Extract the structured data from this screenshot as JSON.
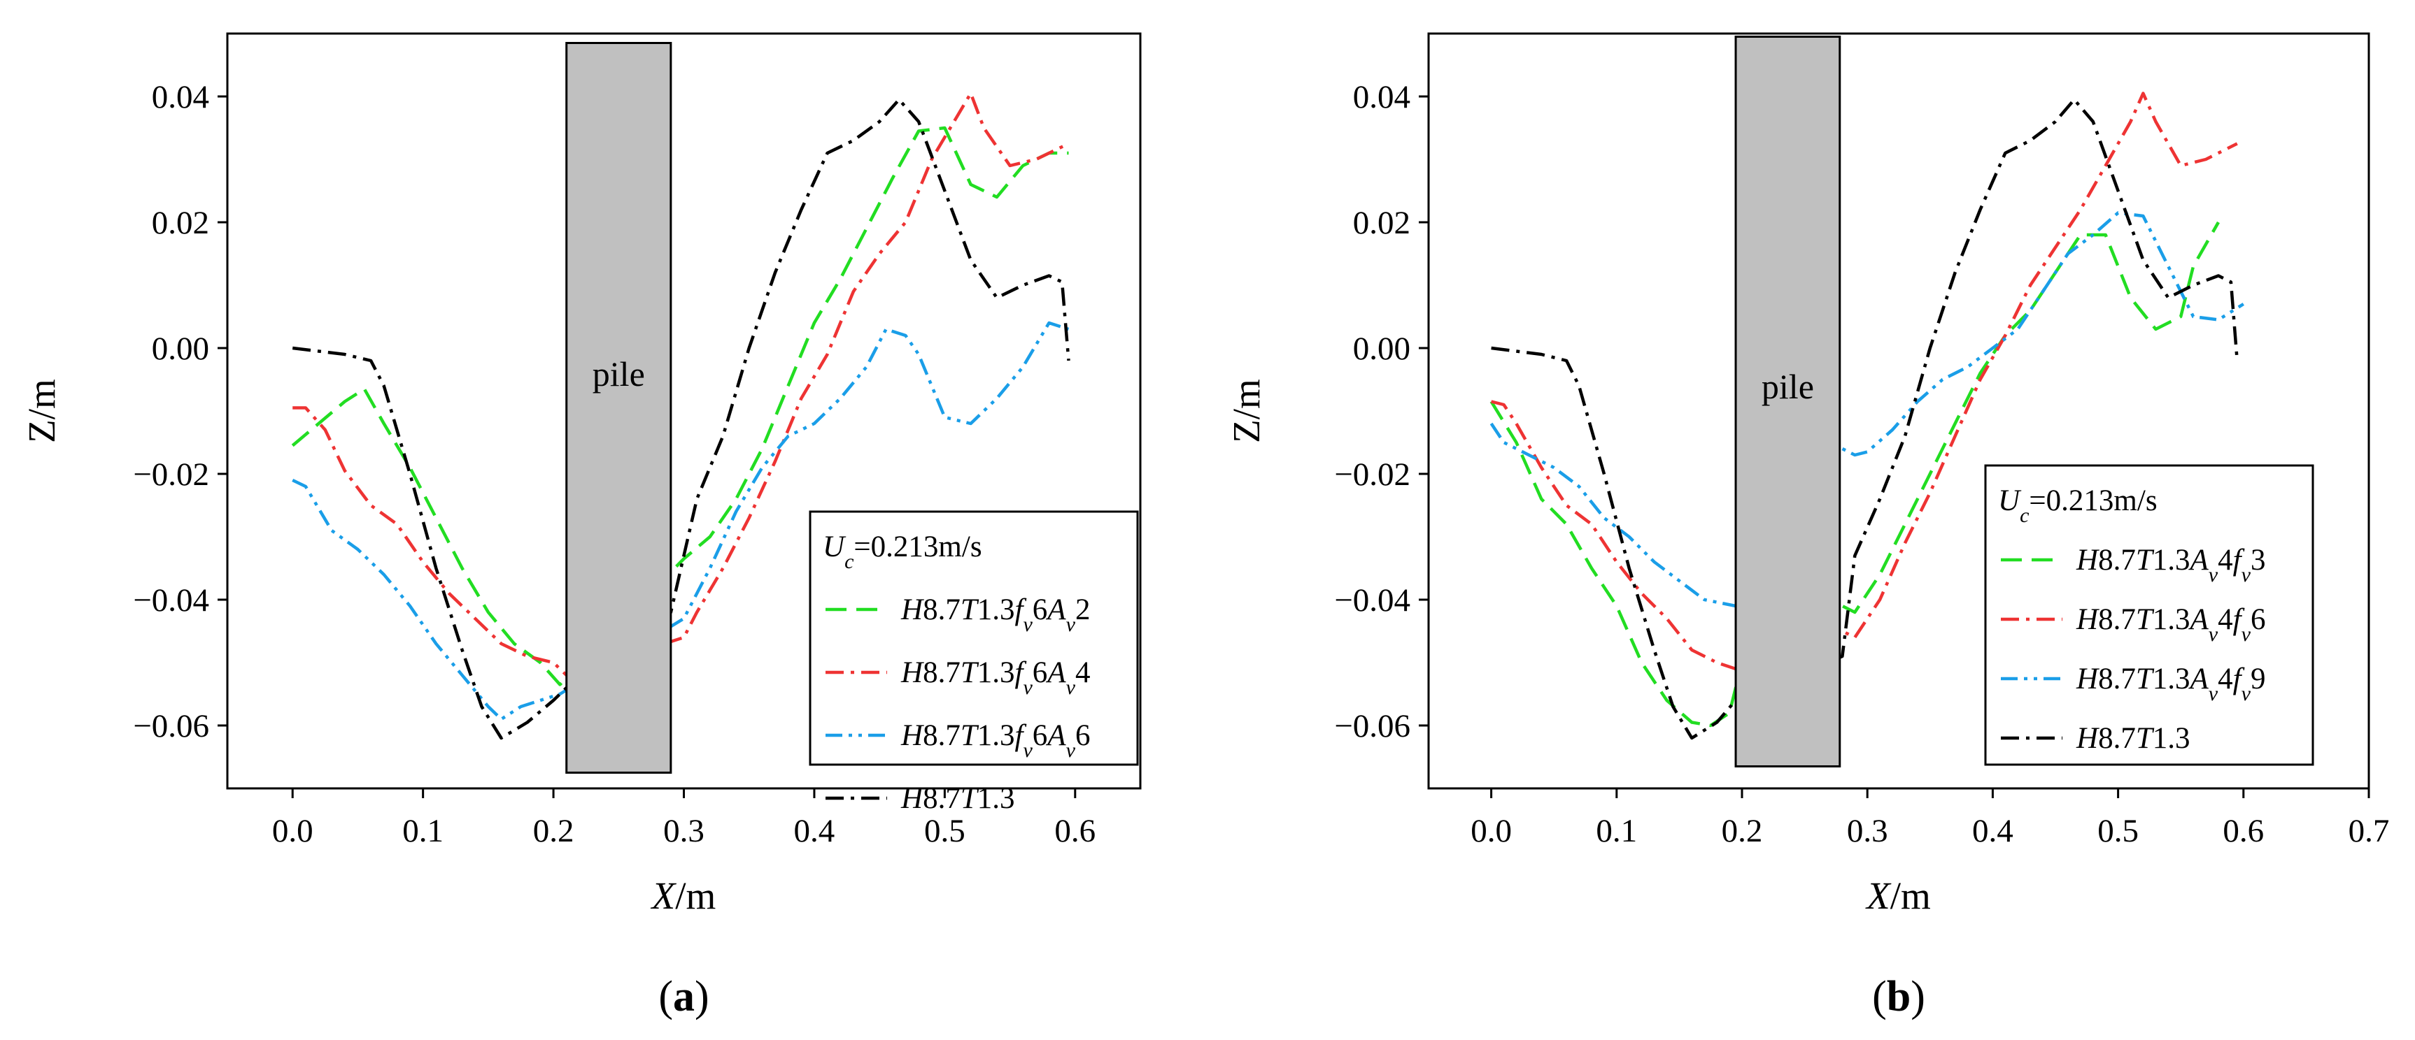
{
  "chart_data": [
    {
      "type": "line",
      "panel_label": [
        "(",
        "a",
        ")"
      ],
      "xlabel": [
        "X",
        "/m"
      ],
      "ylabel": "Z/m",
      "xlim": [
        -0.05,
        0.65
      ],
      "ylim": [
        -0.07,
        0.05
      ],
      "xticks": [
        0.0,
        0.1,
        0.2,
        0.3,
        0.4,
        0.5,
        0.6
      ],
      "xtick_labels": [
        "0.0",
        "0.1",
        "0.2",
        "0.3",
        "0.4",
        "0.5",
        "0.6"
      ],
      "yticks": [
        -0.06,
        -0.04,
        -0.02,
        0.0,
        0.02,
        0.04
      ],
      "ytick_labels": [
        "−0.06",
        "−0.04",
        "−0.02",
        "0.00",
        "0.02",
        "0.04"
      ],
      "pile": {
        "label": "pile",
        "x_range": [
          0.21,
          0.29
        ],
        "z_range": [
          -0.0675,
          0.0485
        ],
        "color": "#c0c0c0"
      },
      "legend": {
        "position": "lower-right",
        "title": [
          [
            "U",
            "i"
          ],
          [
            "c",
            "sub-i"
          ],
          [
            "=0.213m/s",
            "n"
          ]
        ]
      },
      "series": [
        {
          "name": [
            [
              "H",
              "i"
            ],
            [
              "8.7",
              "n"
            ],
            [
              "T",
              "i"
            ],
            [
              "1.3",
              "n"
            ],
            [
              "f",
              "i"
            ],
            [
              "v",
              "sub-i"
            ],
            [
              "6",
              "n"
            ],
            [
              "A",
              "i"
            ],
            [
              "v",
              "sub-i"
            ],
            [
              "2",
              "n"
            ]
          ],
          "color": "#22dd22",
          "dash": "dash",
          "x": [
            0.0,
            0.02,
            0.04,
            0.055,
            0.07,
            0.09,
            0.11,
            0.13,
            0.15,
            0.17,
            0.19,
            0.205,
            0.3,
            0.32,
            0.34,
            0.36,
            0.38,
            0.4,
            0.42,
            0.44,
            0.46,
            0.48,
            0.5,
            0.52,
            0.54,
            0.56,
            0.58,
            0.595
          ],
          "y": [
            -0.0155,
            -0.012,
            -0.0085,
            -0.0065,
            -0.012,
            -0.019,
            -0.027,
            -0.035,
            -0.042,
            -0.047,
            -0.05,
            -0.0535,
            -0.0335,
            -0.03,
            -0.024,
            -0.016,
            -0.006,
            0.004,
            0.011,
            0.019,
            0.027,
            0.0345,
            0.035,
            0.026,
            0.024,
            0.029,
            0.031,
            0.031
          ]
        },
        {
          "name": [
            [
              "H",
              "i"
            ],
            [
              "8.7",
              "n"
            ],
            [
              "T",
              "i"
            ],
            [
              "1.3",
              "n"
            ],
            [
              "f",
              "i"
            ],
            [
              "v",
              "sub-i"
            ],
            [
              "6",
              "n"
            ],
            [
              "A",
              "i"
            ],
            [
              "v",
              "sub-i"
            ],
            [
              "4",
              "n"
            ]
          ],
          "color": "#ee3333",
          "dash": "dashdot",
          "x": [
            0.0,
            0.01,
            0.025,
            0.04,
            0.06,
            0.08,
            0.1,
            0.12,
            0.14,
            0.16,
            0.18,
            0.2,
            0.21,
            0.3,
            0.31,
            0.33,
            0.35,
            0.37,
            0.39,
            0.41,
            0.43,
            0.45,
            0.47,
            0.49,
            0.51,
            0.52,
            0.53,
            0.55,
            0.57,
            0.595
          ],
          "y": [
            -0.0095,
            -0.0095,
            -0.013,
            -0.0195,
            -0.025,
            -0.028,
            -0.034,
            -0.039,
            -0.043,
            -0.047,
            -0.049,
            -0.05,
            -0.052,
            -0.046,
            -0.042,
            -0.035,
            -0.027,
            -0.018,
            -0.008,
            -0.001,
            0.009,
            0.015,
            0.02,
            0.03,
            0.037,
            0.0405,
            0.035,
            0.029,
            0.03,
            0.0325
          ]
        },
        {
          "name": [
            [
              "H",
              "i"
            ],
            [
              "8.7",
              "n"
            ],
            [
              "T",
              "i"
            ],
            [
              "1.3",
              "n"
            ],
            [
              "f",
              "i"
            ],
            [
              "v",
              "sub-i"
            ],
            [
              "6",
              "n"
            ],
            [
              "A",
              "i"
            ],
            [
              "v",
              "sub-i"
            ],
            [
              "6",
              "n"
            ]
          ],
          "color": "#1a9ee8",
          "dash": "dashdotdot",
          "x": [
            0.0,
            0.01,
            0.03,
            0.05,
            0.07,
            0.09,
            0.11,
            0.13,
            0.15,
            0.16,
            0.175,
            0.19,
            0.205,
            0.3,
            0.32,
            0.34,
            0.36,
            0.38,
            0.4,
            0.42,
            0.44,
            0.455,
            0.47,
            0.48,
            0.5,
            0.52,
            0.54,
            0.56,
            0.58,
            0.595
          ],
          "y": [
            -0.021,
            -0.022,
            -0.029,
            -0.032,
            -0.036,
            -0.041,
            -0.047,
            -0.052,
            -0.057,
            -0.059,
            -0.057,
            -0.056,
            -0.055,
            -0.043,
            -0.035,
            -0.026,
            -0.019,
            -0.014,
            -0.012,
            -0.008,
            -0.003,
            0.003,
            0.002,
            -0.001,
            -0.011,
            -0.012,
            -0.008,
            -0.003,
            0.004,
            0.003
          ]
        },
        {
          "name": [
            [
              "H",
              "i"
            ],
            [
              "8.7",
              "n"
            ],
            [
              "T",
              "i"
            ],
            [
              "1.3",
              "n"
            ]
          ],
          "color": "#000000",
          "dash": "dashdot",
          "x": [
            0.0,
            0.02,
            0.04,
            0.06,
            0.07,
            0.09,
            0.11,
            0.13,
            0.145,
            0.16,
            0.18,
            0.2,
            0.21,
            0.29,
            0.3,
            0.31,
            0.33,
            0.35,
            0.37,
            0.39,
            0.41,
            0.43,
            0.45,
            0.465,
            0.48,
            0.5,
            0.52,
            0.54,
            0.56,
            0.58,
            0.59,
            0.595
          ],
          "y": [
            0.0,
            -0.0005,
            -0.001,
            -0.002,
            -0.006,
            -0.02,
            -0.035,
            -0.048,
            -0.057,
            -0.062,
            -0.0595,
            -0.056,
            -0.054,
            -0.042,
            -0.033,
            -0.024,
            -0.014,
            0.0,
            0.012,
            0.022,
            0.031,
            0.033,
            0.036,
            0.0395,
            0.036,
            0.025,
            0.014,
            0.008,
            0.01,
            0.0115,
            0.0105,
            -0.002
          ]
        }
      ]
    },
    {
      "type": "line",
      "panel_label": [
        "(",
        "b",
        ")"
      ],
      "xlabel": [
        "X",
        "/m"
      ],
      "ylabel": "Z/m",
      "xlim": [
        -0.05,
        0.7
      ],
      "ylim": [
        -0.07,
        0.05
      ],
      "xticks": [
        0.0,
        0.1,
        0.2,
        0.3,
        0.4,
        0.5,
        0.6,
        0.7
      ],
      "xtick_labels": [
        "0.0",
        "0.1",
        "0.2",
        "0.3",
        "0.4",
        "0.5",
        "0.6",
        "0.7"
      ],
      "yticks": [
        -0.06,
        -0.04,
        -0.02,
        0.0,
        0.02,
        0.04
      ],
      "ytick_labels": [
        "−0.06",
        "−0.04",
        "−0.02",
        "0.00",
        "0.02",
        "0.04"
      ],
      "pile": {
        "label": "pile",
        "x_range": [
          0.195,
          0.278
        ],
        "z_range": [
          -0.0665,
          0.0495
        ],
        "color": "#c0c0c0"
      },
      "legend": {
        "position": "lower-right",
        "title": [
          [
            "U",
            "i"
          ],
          [
            "c",
            "sub-i"
          ],
          [
            "=0.213m/s",
            "n"
          ]
        ]
      },
      "series": [
        {
          "name": [
            [
              "H",
              "i"
            ],
            [
              "8.7",
              "n"
            ],
            [
              "T",
              "i"
            ],
            [
              "1.3",
              "n"
            ],
            [
              "A",
              "i"
            ],
            [
              "v",
              "sub-i"
            ],
            [
              "4",
              "n"
            ],
            [
              "f",
              "i"
            ],
            [
              "v",
              "sub-i"
            ],
            [
              "3",
              "n"
            ]
          ],
          "color": "#22dd22",
          "dash": "dash",
          "x": [
            0.0,
            0.02,
            0.04,
            0.06,
            0.08,
            0.1,
            0.12,
            0.14,
            0.16,
            0.175,
            0.19,
            0.195,
            0.28,
            0.29,
            0.31,
            0.33,
            0.35,
            0.37,
            0.39,
            0.41,
            0.43,
            0.45,
            0.47,
            0.49,
            0.51,
            0.53,
            0.55,
            0.56,
            0.58
          ],
          "y": [
            -0.0085,
            -0.015,
            -0.024,
            -0.028,
            -0.035,
            -0.041,
            -0.05,
            -0.056,
            -0.0595,
            -0.06,
            -0.058,
            -0.054,
            -0.041,
            -0.042,
            -0.036,
            -0.028,
            -0.02,
            -0.012,
            -0.004,
            0.002,
            0.006,
            0.012,
            0.018,
            0.018,
            0.008,
            0.003,
            0.005,
            0.013,
            0.02
          ]
        },
        {
          "name": [
            [
              "H",
              "i"
            ],
            [
              "8.7",
              "n"
            ],
            [
              "T",
              "i"
            ],
            [
              "1.3",
              "n"
            ],
            [
              "A",
              "i"
            ],
            [
              "v",
              "sub-i"
            ],
            [
              "4",
              "n"
            ],
            [
              "f",
              "i"
            ],
            [
              "v",
              "sub-i"
            ],
            [
              "6",
              "n"
            ]
          ],
          "color": "#ee3333",
          "dash": "dashdot",
          "x": [
            0.0,
            0.01,
            0.02,
            0.04,
            0.06,
            0.08,
            0.1,
            0.12,
            0.14,
            0.16,
            0.18,
            0.195,
            0.28,
            0.29,
            0.31,
            0.33,
            0.35,
            0.37,
            0.39,
            0.41,
            0.43,
            0.45,
            0.47,
            0.49,
            0.51,
            0.52,
            0.53,
            0.55,
            0.57,
            0.595
          ],
          "y": [
            -0.0085,
            -0.009,
            -0.012,
            -0.019,
            -0.025,
            -0.028,
            -0.034,
            -0.039,
            -0.043,
            -0.048,
            -0.05,
            -0.051,
            -0.045,
            -0.046,
            -0.04,
            -0.031,
            -0.023,
            -0.014,
            -0.005,
            0.002,
            0.01,
            0.016,
            0.022,
            0.029,
            0.036,
            0.0405,
            0.036,
            0.029,
            0.03,
            0.0325
          ]
        },
        {
          "name": [
            [
              "H",
              "i"
            ],
            [
              "8.7",
              "n"
            ],
            [
              "T",
              "i"
            ],
            [
              "1.3",
              "n"
            ],
            [
              "A",
              "i"
            ],
            [
              "v",
              "sub-i"
            ],
            [
              "4",
              "n"
            ],
            [
              "f",
              "i"
            ],
            [
              "v",
              "sub-i"
            ],
            [
              "9",
              "n"
            ]
          ],
          "color": "#1a9ee8",
          "dash": "dashdotdot",
          "x": [
            0.0,
            0.01,
            0.03,
            0.05,
            0.07,
            0.09,
            0.11,
            0.13,
            0.15,
            0.17,
            0.195,
            0.28,
            0.29,
            0.3,
            0.32,
            0.34,
            0.36,
            0.38,
            0.4,
            0.42,
            0.44,
            0.46,
            0.48,
            0.5,
            0.52,
            0.54,
            0.56,
            0.58,
            0.6
          ],
          "y": [
            -0.012,
            -0.015,
            -0.017,
            -0.019,
            -0.022,
            -0.027,
            -0.03,
            -0.034,
            -0.037,
            -0.04,
            -0.041,
            -0.016,
            -0.017,
            -0.0165,
            -0.013,
            -0.0085,
            -0.005,
            -0.003,
            0.0,
            0.003,
            0.009,
            0.015,
            0.018,
            0.0215,
            0.021,
            0.013,
            0.005,
            0.0045,
            0.007
          ]
        },
        {
          "name": [
            [
              "H",
              "i"
            ],
            [
              "8.7",
              "n"
            ],
            [
              "T",
              "i"
            ],
            [
              "1.3",
              "n"
            ]
          ],
          "color": "#000000",
          "dash": "dashdot",
          "x": [
            0.0,
            0.02,
            0.04,
            0.06,
            0.07,
            0.09,
            0.11,
            0.13,
            0.145,
            0.16,
            0.18,
            0.195,
            0.28,
            0.29,
            0.31,
            0.33,
            0.35,
            0.37,
            0.39,
            0.41,
            0.43,
            0.45,
            0.465,
            0.48,
            0.5,
            0.52,
            0.54,
            0.56,
            0.58,
            0.59,
            0.595
          ],
          "y": [
            0.0,
            -0.0005,
            -0.001,
            -0.002,
            -0.006,
            -0.02,
            -0.035,
            -0.048,
            -0.057,
            -0.062,
            -0.0595,
            -0.056,
            -0.049,
            -0.033,
            -0.024,
            -0.014,
            0.0,
            0.012,
            0.022,
            0.031,
            0.033,
            0.036,
            0.0395,
            0.036,
            0.025,
            0.014,
            0.008,
            0.01,
            0.0115,
            0.0105,
            -0.002
          ]
        }
      ]
    }
  ]
}
